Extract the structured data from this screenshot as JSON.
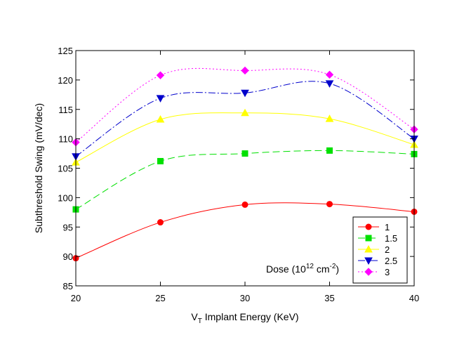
{
  "chart_data": {
    "type": "line",
    "title": "",
    "xlabel": {
      "main": "V",
      "sub": "T",
      "rest": " Implant Energy (KeV)"
    },
    "ylabel": "Subthreshold Swing (mV/dec)",
    "x": [
      20,
      25,
      30,
      35,
      40
    ],
    "xlim": [
      20,
      40
    ],
    "ylim": [
      85,
      125
    ],
    "xticks": [
      20,
      25,
      30,
      35,
      40
    ],
    "yticks": [
      85,
      90,
      95,
      100,
      105,
      110,
      115,
      120,
      125
    ],
    "grid": false,
    "legend": {
      "placement": "bottom-right",
      "title": {
        "text": "Dose (10",
        "sup1": "12",
        "mid": " cm",
        "sup2": "-2",
        "end": ")"
      }
    },
    "series": [
      {
        "name": "1",
        "color": "#ff0000",
        "marker": "circle",
        "dash": "solid",
        "values": [
          89.7,
          95.8,
          98.8,
          98.9,
          97.6
        ]
      },
      {
        "name": "1.5",
        "color": "#00e000",
        "marker": "square",
        "dash": "dash",
        "values": [
          98.0,
          106.2,
          107.5,
          108.0,
          107.4
        ]
      },
      {
        "name": "2",
        "color": "#ffff00",
        "marker": "triangle-up",
        "dash": "solid",
        "values": [
          106.0,
          113.3,
          114.4,
          113.4,
          109.0
        ]
      },
      {
        "name": "2.5",
        "color": "#0000cc",
        "marker": "triangle-down",
        "dash": "dashdot",
        "values": [
          107.0,
          116.9,
          117.8,
          119.4,
          110.0
        ]
      },
      {
        "name": "3",
        "color": "#ff00ff",
        "marker": "diamond",
        "dash": "dot",
        "values": [
          109.4,
          120.8,
          121.6,
          120.9,
          111.6
        ]
      }
    ]
  }
}
